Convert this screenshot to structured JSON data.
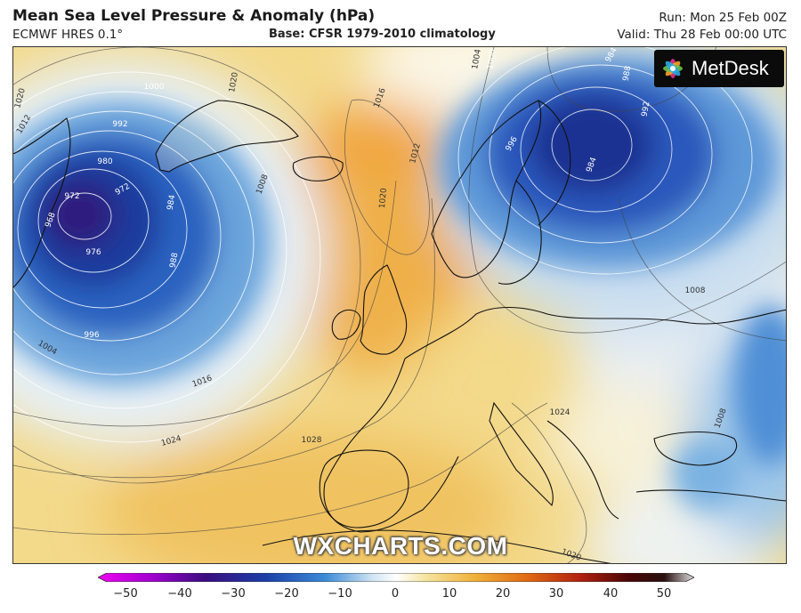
{
  "header": {
    "title": "Mean Sea Level Pressure & Anomaly (hPa)",
    "model": "ECMWF HRES 0.1°",
    "base": "Base: CFSR 1979-2010 climatology",
    "run": "Run: Mon 25 Feb 00Z",
    "valid": "Valid: Thu 28 Feb 00:00 UTC"
  },
  "brand": {
    "name": "MetDesk",
    "icon": "metdesk-flower-logo"
  },
  "watermark": "WXCHARTS.COM",
  "isobar_labels": [
    {
      "text": "1020"
    },
    {
      "text": "1012"
    },
    {
      "text": "1000"
    },
    {
      "text": "992"
    },
    {
      "text": "980"
    },
    {
      "text": "972"
    },
    {
      "text": "972"
    },
    {
      "text": "968"
    },
    {
      "text": "984"
    },
    {
      "text": "976"
    },
    {
      "text": "988"
    },
    {
      "text": "996"
    },
    {
      "text": "1004"
    },
    {
      "text": "1016"
    },
    {
      "text": "1024"
    },
    {
      "text": "1028"
    },
    {
      "text": "1020"
    },
    {
      "text": "1016"
    },
    {
      "text": "1012"
    },
    {
      "text": "1008"
    },
    {
      "text": "1020"
    },
    {
      "text": "1004"
    },
    {
      "text": "1000"
    },
    {
      "text": "996"
    },
    {
      "text": "984"
    },
    {
      "text": "992"
    },
    {
      "text": "988"
    },
    {
      "text": "984"
    },
    {
      "text": "1008"
    },
    {
      "text": "1008"
    },
    {
      "text": "1024"
    },
    {
      "text": "1020"
    }
  ],
  "colorbar": {
    "ticks": [
      "−50",
      "−40",
      "−30",
      "−20",
      "−10",
      "0",
      "10",
      "20",
      "30",
      "40",
      "50"
    ],
    "colors": [
      "#f000f0",
      "#8a00c8",
      "#2a0a7a",
      "#1a3aa8",
      "#2a78d0",
      "#a8d0ee",
      "#ffffff",
      "#f7e6a0",
      "#f0b840",
      "#e87010",
      "#c83010",
      "#6a0808",
      "#1a0404",
      "#dddddd"
    ]
  }
}
